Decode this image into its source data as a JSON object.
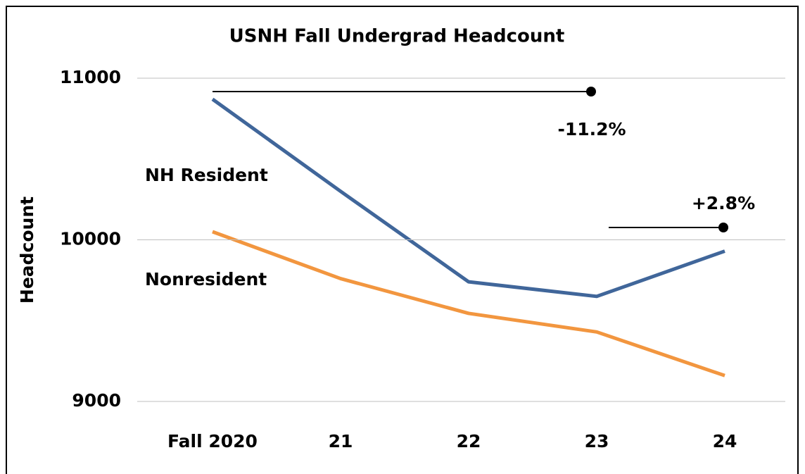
{
  "chart_data": {
    "type": "line",
    "title": "USNH Fall Undergrad Headcount",
    "y_label": "Headcount",
    "categories": [
      "Fall 2020",
      "21",
      "22",
      "23",
      "24"
    ],
    "series": [
      {
        "name": "NH Resident",
        "color": "#40669a",
        "values": [
          10870,
          10300,
          9740,
          9650,
          9930
        ]
      },
      {
        "name": "Nonresident",
        "color": "#f2963f",
        "values": [
          10050,
          9760,
          9545,
          9430,
          9160
        ]
      }
    ],
    "annotations": [
      "-11.2%",
      "+2.8%"
    ],
    "ylim": [
      9000,
      11000
    ],
    "yticks": [
      9000,
      10000,
      11000
    ],
    "grid": true
  }
}
